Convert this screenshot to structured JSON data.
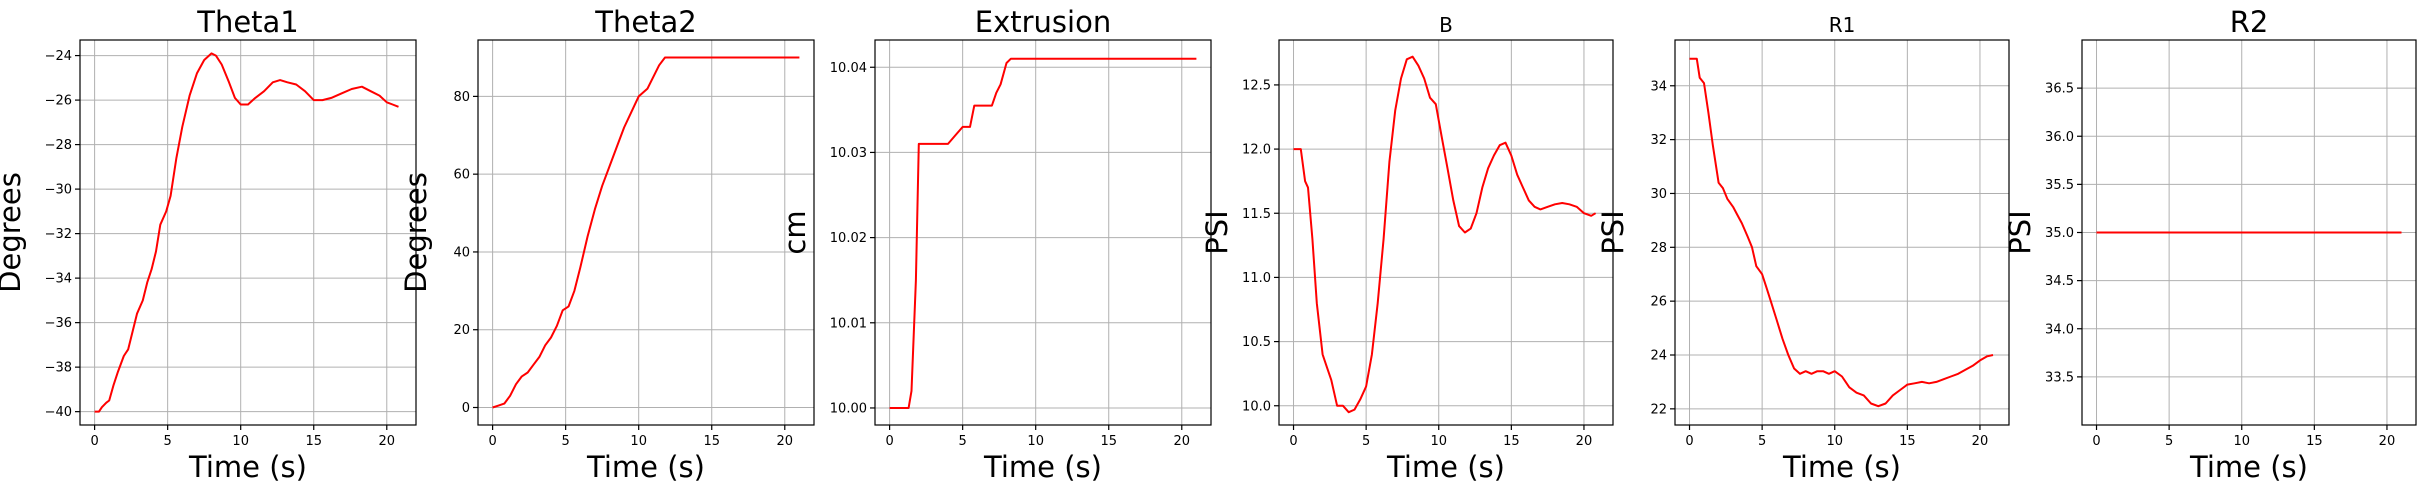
{
  "chart_data": [
    {
      "type": "line",
      "title": "Theta1",
      "xlabel": "Time (s)",
      "ylabel": "Degrees",
      "xlim": [
        -1,
        22
      ],
      "ylim": [
        -40.6,
        -23.3
      ],
      "xticks": [
        0,
        5,
        10,
        15,
        20
      ],
      "xtick_labels": [
        "0",
        "5",
        "10",
        "15",
        "20"
      ],
      "yticks": [
        -40,
        -38,
        -36,
        -34,
        -32,
        -30,
        -28,
        -26,
        -24
      ],
      "ytick_labels": [
        "−40",
        "−38",
        "−36",
        "−34",
        "−32",
        "−30",
        "−28",
        "−26",
        "−24"
      ],
      "grid": true,
      "color": "#ff0000",
      "x": [
        0,
        0.3,
        0.5,
        0.8,
        1.0,
        1.3,
        1.6,
        2.0,
        2.3,
        2.6,
        2.9,
        3.3,
        3.6,
        3.9,
        4.2,
        4.5,
        4.9,
        5.2,
        5.6,
        6.0,
        6.5,
        7.0,
        7.5,
        8.0,
        8.3,
        8.7,
        9.2,
        9.6,
        10.0,
        10.5,
        11.0,
        11.6,
        12.2,
        12.7,
        13.2,
        13.8,
        14.4,
        15.0,
        15.6,
        16.2,
        16.9,
        17.6,
        18.3,
        18.9,
        19.5,
        20.0,
        20.4,
        20.8
      ],
      "y": [
        -40,
        -40,
        -39.8,
        -39.6,
        -39.5,
        -38.8,
        -38.2,
        -37.5,
        -37.2,
        -36.4,
        -35.6,
        -35.0,
        -34.2,
        -33.6,
        -32.8,
        -31.6,
        -31.0,
        -30.3,
        -28.6,
        -27.2,
        -25.8,
        -24.8,
        -24.2,
        -23.9,
        -24.0,
        -24.4,
        -25.2,
        -25.9,
        -26.2,
        -26.2,
        -25.9,
        -25.6,
        -25.2,
        -25.1,
        -25.2,
        -25.3,
        -25.6,
        -26.0,
        -26.0,
        -25.9,
        -25.7,
        -25.5,
        -25.4,
        -25.6,
        -25.8,
        -26.1,
        -26.2,
        -26.3
      ],
      "title_size": 29
    },
    {
      "type": "line",
      "title": "Theta2",
      "xlabel": "Time (s)",
      "ylabel": "Degrees",
      "xlim": [
        -1,
        22
      ],
      "ylim": [
        -4.5,
        94.5
      ],
      "xticks": [
        0,
        5,
        10,
        15,
        20
      ],
      "xtick_labels": [
        "0",
        "5",
        "10",
        "15",
        "20"
      ],
      "yticks": [
        0,
        20,
        40,
        60,
        80
      ],
      "ytick_labels": [
        "0",
        "20",
        "40",
        "60",
        "80"
      ],
      "grid": true,
      "color": "#ff0000",
      "x": [
        0,
        0.4,
        0.8,
        1.2,
        1.6,
        2.0,
        2.4,
        2.8,
        3.2,
        3.6,
        4.0,
        4.4,
        4.8,
        5.2,
        5.6,
        6.0,
        6.5,
        7.0,
        7.5,
        8.0,
        8.5,
        9.0,
        9.5,
        10.0,
        10.3,
        10.6,
        11.0,
        11.4,
        11.8,
        12.1,
        12.5,
        13.0,
        15.0,
        18.0,
        21.0
      ],
      "y": [
        0,
        0.5,
        1.0,
        3.0,
        6.0,
        8.0,
        9.0,
        11.0,
        13.0,
        16.0,
        18.0,
        21.0,
        25.0,
        26.0,
        30.0,
        36.0,
        44.0,
        51.0,
        57.0,
        62.0,
        67.0,
        72.0,
        76.0,
        80.0,
        81.0,
        82.0,
        85.0,
        88.0,
        90.0,
        90.0,
        90.0,
        90.0,
        90.0,
        90.0,
        90.0
      ],
      "title_size": 29
    },
    {
      "type": "line",
      "title": "Extrusion",
      "xlabel": "Time (s)",
      "ylabel": "cm",
      "xlim": [
        -1,
        22
      ],
      "ylim": [
        9.998,
        10.0432
      ],
      "xticks": [
        0,
        5,
        10,
        15,
        20
      ],
      "xtick_labels": [
        "0",
        "5",
        "10",
        "15",
        "20"
      ],
      "yticks": [
        10.0,
        10.01,
        10.02,
        10.03,
        10.04
      ],
      "ytick_labels": [
        "10.00",
        "10.01",
        "10.02",
        "10.03",
        "10.04"
      ],
      "grid": true,
      "color": "#ff0000",
      "x": [
        0,
        1.3,
        1.5,
        1.8,
        2.0,
        3.0,
        4.0,
        4.5,
        5.0,
        5.5,
        5.8,
        6.0,
        7.0,
        7.3,
        7.6,
        8.0,
        8.3,
        9.0,
        12.0,
        15.0,
        18.0,
        21.0
      ],
      "y": [
        10.0,
        10.0,
        10.002,
        10.015,
        10.031,
        10.031,
        10.031,
        10.032,
        10.033,
        10.033,
        10.0355,
        10.0355,
        10.0355,
        10.037,
        10.038,
        10.0405,
        10.041,
        10.041,
        10.041,
        10.041,
        10.041,
        10.041
      ],
      "title_size": 29
    },
    {
      "type": "line",
      "title": "B",
      "xlabel": "Time (s)",
      "ylabel": "PSI",
      "xlim": [
        -1,
        22
      ],
      "ylim": [
        9.85,
        12.85
      ],
      "xticks": [
        0,
        5,
        10,
        15,
        20
      ],
      "xtick_labels": [
        "0",
        "5",
        "10",
        "15",
        "20"
      ],
      "yticks": [
        10.0,
        10.5,
        11.0,
        11.5,
        12.0,
        12.5
      ],
      "ytick_labels": [
        "10.0",
        "10.5",
        "11.0",
        "11.5",
        "12.0",
        "12.5"
      ],
      "grid": true,
      "color": "#ff0000",
      "x": [
        0,
        0.5,
        0.8,
        1.0,
        1.3,
        1.6,
        2.0,
        2.3,
        2.6,
        3.0,
        3.4,
        3.8,
        4.2,
        4.6,
        5.0,
        5.4,
        5.8,
        6.2,
        6.6,
        7.0,
        7.4,
        7.8,
        8.2,
        8.6,
        9.0,
        9.4,
        9.8,
        10.2,
        10.6,
        11.0,
        11.4,
        11.8,
        12.2,
        12.6,
        13.0,
        13.4,
        13.8,
        14.2,
        14.6,
        15.0,
        15.4,
        15.8,
        16.2,
        16.6,
        17.0,
        17.5,
        18.0,
        18.5,
        19.0,
        19.5,
        20.0,
        20.5,
        20.8
      ],
      "y": [
        12.0,
        12.0,
        11.75,
        11.7,
        11.3,
        10.8,
        10.4,
        10.3,
        10.2,
        10.0,
        10.0,
        9.95,
        9.97,
        10.05,
        10.15,
        10.4,
        10.8,
        11.3,
        11.9,
        12.3,
        12.55,
        12.7,
        12.72,
        12.65,
        12.55,
        12.4,
        12.35,
        12.1,
        11.85,
        11.6,
        11.4,
        11.35,
        11.38,
        11.5,
        11.7,
        11.85,
        11.95,
        12.03,
        12.05,
        11.95,
        11.8,
        11.7,
        11.6,
        11.55,
        11.53,
        11.55,
        11.57,
        11.58,
        11.57,
        11.55,
        11.5,
        11.48,
        11.5
      ],
      "title_size": 20
    },
    {
      "type": "line",
      "title": "R1",
      "xlabel": "Time (s)",
      "ylabel": "PSI",
      "xlim": [
        -1,
        22
      ],
      "ylim": [
        21.4,
        35.7
      ],
      "xticks": [
        0,
        5,
        10,
        15,
        20
      ],
      "xtick_labels": [
        "0",
        "5",
        "10",
        "15",
        "20"
      ],
      "yticks": [
        22,
        24,
        26,
        28,
        30,
        32,
        34
      ],
      "ytick_labels": [
        "22",
        "24",
        "26",
        "28",
        "30",
        "32",
        "34"
      ],
      "grid": true,
      "color": "#ff0000",
      "x": [
        0,
        0.5,
        0.7,
        1.0,
        1.3,
        1.6,
        2.0,
        2.3,
        2.6,
        3.0,
        3.3,
        3.6,
        4.0,
        4.3,
        4.6,
        5.0,
        5.3,
        5.6,
        6.0,
        6.4,
        6.8,
        7.2,
        7.6,
        8.0,
        8.4,
        8.8,
        9.2,
        9.6,
        10.0,
        10.5,
        11.0,
        11.5,
        12.0,
        12.5,
        13.0,
        13.5,
        14.0,
        14.5,
        15.0,
        15.5,
        16.0,
        16.5,
        17.0,
        17.5,
        18.0,
        18.5,
        19.0,
        19.5,
        20.0,
        20.5,
        20.9
      ],
      "y": [
        35.0,
        35.0,
        34.3,
        34.1,
        33.0,
        31.8,
        30.4,
        30.2,
        29.8,
        29.5,
        29.2,
        28.9,
        28.4,
        28.0,
        27.3,
        27.0,
        26.5,
        26.0,
        25.3,
        24.6,
        24.0,
        23.5,
        23.3,
        23.4,
        23.3,
        23.4,
        23.4,
        23.3,
        23.4,
        23.2,
        22.8,
        22.6,
        22.5,
        22.2,
        22.1,
        22.2,
        22.5,
        22.7,
        22.9,
        22.95,
        23.0,
        22.95,
        23.0,
        23.1,
        23.2,
        23.3,
        23.45,
        23.6,
        23.8,
        23.95,
        24.0
      ],
      "title_size": 20
    },
    {
      "type": "line",
      "title": "R2",
      "xlabel": "Time (s)",
      "ylabel": "PSI",
      "xlim": [
        -1,
        22
      ],
      "ylim": [
        33.0,
        37.0
      ],
      "xticks": [
        0,
        5,
        10,
        15,
        20
      ],
      "xtick_labels": [
        "0",
        "5",
        "10",
        "15",
        "20"
      ],
      "yticks": [
        33.5,
        34.0,
        34.5,
        35.0,
        35.5,
        36.0,
        36.5
      ],
      "ytick_labels": [
        "33.5",
        "34.0",
        "34.5",
        "35.0",
        "35.5",
        "36.0",
        "36.5"
      ],
      "grid": true,
      "color": "#ff0000",
      "x": [
        0,
        21
      ],
      "y": [
        35.0,
        35.0
      ],
      "title_size": 29
    }
  ]
}
